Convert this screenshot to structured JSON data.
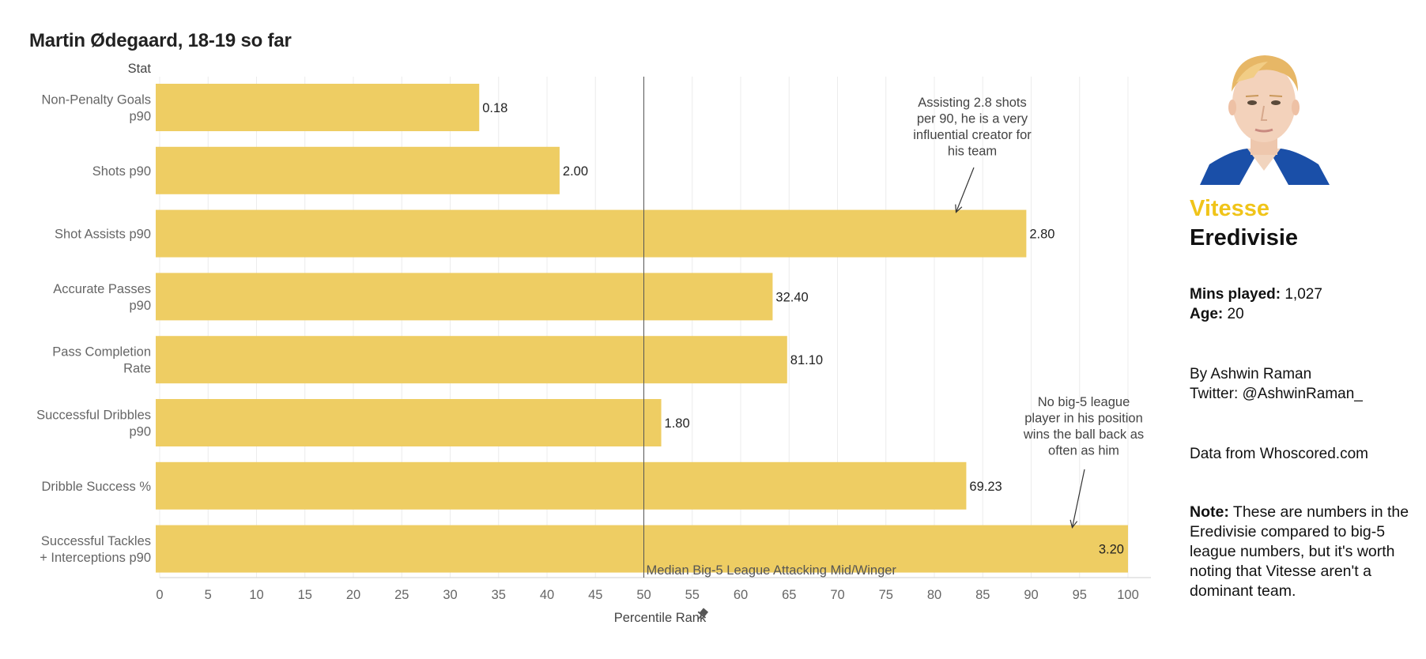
{
  "title": "Martin Ødegaard, 18-19 so far",
  "chart_data": {
    "type": "bar",
    "orientation": "horizontal",
    "column_header": "Stat",
    "categories": [
      [
        "Non-Penalty Goals",
        "p90"
      ],
      [
        "Shots p90"
      ],
      [
        "Shot Assists p90"
      ],
      [
        "Accurate Passes",
        "p90"
      ],
      [
        "Pass Completion",
        "Rate"
      ],
      [
        "Successful Dribbles",
        "p90"
      ],
      [
        "Dribble Success %"
      ],
      [
        "Successful Tackles",
        "+ Interceptions p90"
      ]
    ],
    "values": [
      33,
      41.3,
      89.5,
      63.3,
      64.8,
      51.8,
      83.3,
      100
    ],
    "data_labels": [
      "0.18",
      "2.00",
      "2.80",
      "32.40",
      "81.10",
      "1.80",
      "69.23",
      "3.20"
    ],
    "xlabel": "Percentile Rank",
    "xlim": [
      0,
      100
    ],
    "xticks": [
      0,
      5,
      10,
      15,
      20,
      25,
      30,
      35,
      40,
      45,
      50,
      55,
      60,
      65,
      70,
      75,
      80,
      85,
      90,
      95,
      100
    ],
    "bar_color": "#eecd63",
    "grid": "vertical",
    "median_line": {
      "value": 50,
      "label": "Median Big-5 League Attacking Mid/Winger"
    },
    "annotations": [
      {
        "lines": [
          "Assisting 2.8 shots",
          "per 90, he is a very",
          "influential creator for",
          "his team"
        ],
        "category_index": 2,
        "arrow_to_value": 82
      },
      {
        "lines": [
          "No big-5 league",
          "player in his position",
          "wins the ball back as",
          "often as him"
        ],
        "category_index": 7,
        "arrow_to_value": 94
      }
    ]
  },
  "side": {
    "team": "Vitesse",
    "team_color": "#f0c419",
    "league": "Eredivisie",
    "mins_label": "Mins played:",
    "mins_value": "1,027",
    "age_label": "Age:",
    "age_value": "20",
    "author": "By Ashwin Raman",
    "twitter": "Twitter: @AshwinRaman_",
    "source": "Data from Whoscored.com",
    "note_label": "Note:",
    "note_text": "These are numbers in the Eredivisie compared to big-5 league numbers, but it's worth noting that Vitesse aren't a dominant team."
  }
}
